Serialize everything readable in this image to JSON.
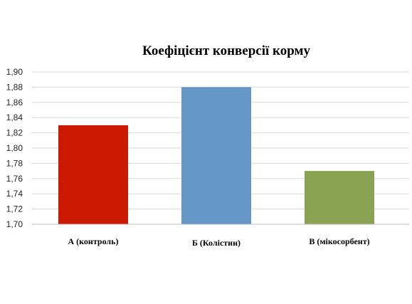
{
  "chart_data": {
    "type": "bar",
    "title": "Коефіцієнт конверсії корму",
    "xlabel": "",
    "ylabel": "",
    "categories": [
      "А (контроль)",
      "Б (Колістин)",
      "В (мікосорбент)"
    ],
    "values": [
      1.83,
      1.88,
      1.77
    ],
    "colors": [
      "#cc1a00",
      "#6496c8",
      "#8aa352"
    ],
    "ylim": [
      1.7,
      1.9
    ],
    "yticks": [
      "1,70",
      "1,72",
      "1,74",
      "1,76",
      "1,78",
      "1,80",
      "1,82",
      "1,84",
      "1,86",
      "1,88",
      "1,90"
    ],
    "grid": true,
    "legend": "none"
  }
}
